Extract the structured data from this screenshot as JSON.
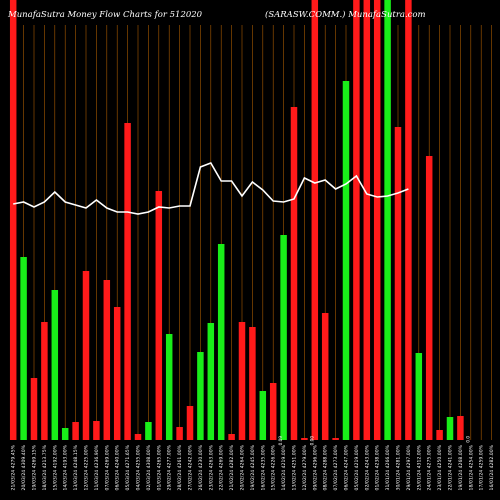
{
  "header": {
    "left_title": "MunafaSutra  Money Flow  Charts for 512020",
    "right_title": "(SARASW.COMM.) MunafaSutra.com"
  },
  "colors": {
    "background": "#000000",
    "up": "#19ee19",
    "down": "#ff1a1a",
    "line": "#ffffff",
    "grid": "#a85a00"
  },
  "chart_data": {
    "type": "bar",
    "ylim": [
      0,
      440
    ],
    "x": [
      "Thu 21 Mar 2024",
      "Wed 20 Mar 2024",
      "Tue 19 Mar 2024",
      "Mon 18 Mar 2024",
      "Fri 15 Mar 2024",
      "Thu 14 Mar 2024",
      "Wed 13 Mar 2024",
      "Tue 12 Mar 2024",
      "Mon 11 Mar 2024",
      "Thu 07 Mar 2024",
      "Wed 06 Mar 2024",
      "Tue 05 Mar 2024",
      "Mon 04 Mar 2024",
      "Sat 02 Mar 2024",
      "Fri 01 Mar 2024",
      "Thu 29 Feb 2024",
      "Wed 28 Feb 2024",
      "Tue 27 Feb 2024",
      "Mon 26 Feb 2024",
      "Fri 23 Feb 2024",
      "Thu 22 Feb 2024",
      "Wed 21 Feb 2024",
      "Tue 20 Feb 2024",
      "Mon 19 Feb 2024",
      "Fri 16 Feb 2024",
      "Thu 15 Feb 2024",
      "Wed 14 Feb 2024",
      "Tue 13 Feb 2024",
      "Mon 12 Feb 2024",
      "Fri 09 Feb 2024",
      "Thu 08 Feb 2024",
      "Wed 07 Feb 2024",
      "Tue 06 Feb 2024",
      "Mon 05 Feb 2024",
      "Fri 02 Feb 2024",
      "Thu 01 Feb 2024",
      "Wed 31 Jan 2024",
      "Tue 30 Jan 2024",
      "Mon 29 Jan 2024",
      "Thu 25 Jan 2024",
      "Wed 24 Jan 2024",
      "Tue 23 Jan 2024",
      "Mon 22 Jan 2024",
      "Fri 19 Jan 2024",
      "Thu 18 Jan 2024",
      "Wed 17 Jan 2024",
      "Tue 16 Jan 2024"
    ],
    "xtick_labels": [
      "21/03/24 4279.45%",
      "20/03/24 4309.40%",
      "19/03/24 4269.15%",
      "18/03/24 4213.75%",
      "15/03/24 4192.00%",
      "14/03/24 4193.00%",
      "13/03/24 4248.15%",
      "12/03/24 4225.00%",
      "11/03/24 4236.90%",
      "07/03/24 4269.00%",
      "06/03/24 4240.00%",
      "05/03/24 4271.65%",
      "04/03/24 4255.00%",
      "02/03/24 4308.00%",
      "01/03/24 4265.00%",
      "29/02/24 4277.00%",
      "28/02/24 4261.00%",
      "27/02/24 4242.00%",
      "26/02/24 4230.00%",
      "23/02/24 4263.00%",
      "22/02/24 4269.00%",
      "21/02/24 4282.00%",
      "20/02/24 4264.00%",
      "19/02/24 4245.00%",
      "16/02/24 4235.00%",
      "15/02/24 4226.00%",
      "14/02/24 4219.00%",
      "13/02/24 4251.00%",
      "12/02/24 4279.00%",
      "09/02/24 4296.00%",
      "08/02/24 4288.00%",
      "07/02/24 4273.00%",
      "06/02/24 4247.00%",
      "05/02/24 4219.00%",
      "02/02/24 4243.00%",
      "01/02/24 4238.00%",
      "31/01/24 4266.00%",
      "30/01/24 4281.00%",
      "29/01/24 4297.00%",
      "25/01/24 4312.00%",
      "24/01/24 4275.00%",
      "23/01/24 4250.00%",
      "22/01/24 4241.00%",
      "19/01/24 4268.00%",
      "18/01/24 4254.00%",
      "17/01/24 4259.00%",
      "16/01/24 4282.00%"
    ],
    "colors_seq": [
      "down",
      "up",
      "down",
      "down",
      "up",
      "up",
      "down",
      "down",
      "down",
      "down",
      "down",
      "down",
      "down",
      "up",
      "down",
      "up",
      "down",
      "down",
      "up",
      "up",
      "up",
      "down",
      "down",
      "down",
      "up",
      "down",
      "up",
      "down",
      "down",
      "down",
      "down",
      "down",
      "up",
      "down",
      "down",
      "down",
      "up",
      "down",
      "down",
      "up",
      "down",
      "down",
      "up",
      "down",
      "down",
      "up",
      "up"
    ],
    "values": [
      440,
      183,
      62,
      118,
      150,
      12,
      18,
      169,
      19,
      160,
      133,
      317,
      6,
      18,
      249,
      106,
      13,
      34,
      88,
      117,
      196,
      6,
      118,
      113,
      49,
      57,
      205,
      333,
      2,
      440,
      127,
      2,
      359,
      440,
      440,
      440,
      440,
      313,
      440,
      87,
      284,
      10,
      23,
      24,
      0,
      0,
      0
    ],
    "line_values": [
      236,
      238,
      233,
      238,
      248,
      238,
      235,
      232,
      240,
      232,
      228,
      228,
      226,
      228,
      233,
      232,
      234,
      234,
      273,
      277,
      259,
      259,
      244,
      258,
      250,
      239,
      238,
      241,
      262,
      257,
      260,
      251,
      256,
      264,
      246,
      243,
      244,
      247,
      251,
      0,
      0,
      0,
      0,
      0,
      0,
      0,
      0
    ],
    "bar_labels": [
      {
        "index": 26,
        "text": "0.09"
      },
      {
        "index": 29,
        "text": "0.00"
      },
      {
        "index": 44,
        "text": "0.0"
      }
    ]
  }
}
